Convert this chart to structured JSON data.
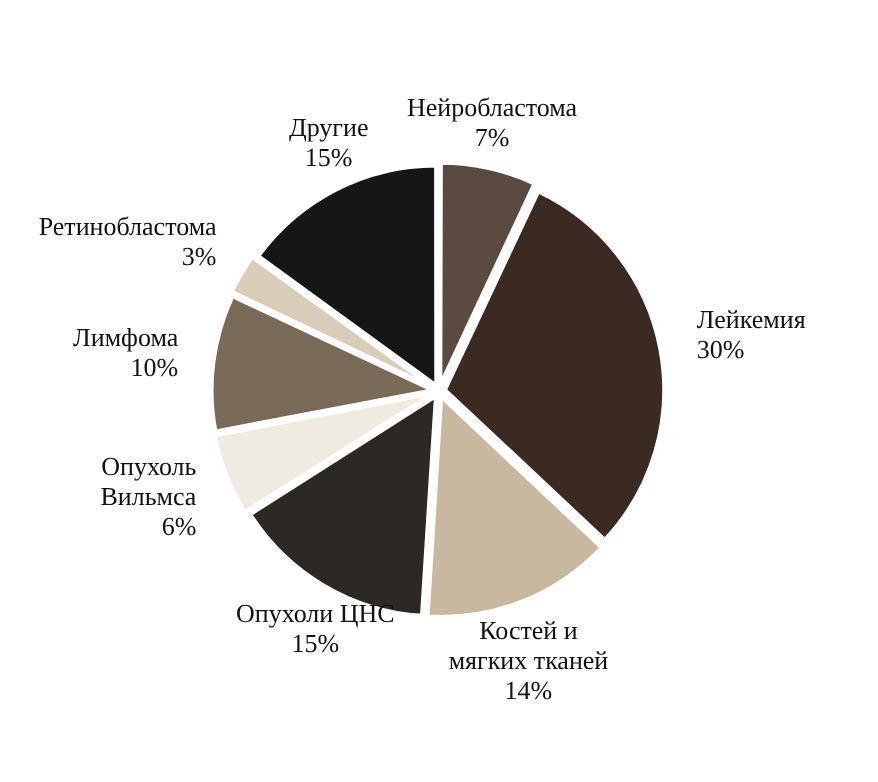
{
  "chart_data": {
    "type": "pie",
    "categories": [
      "Нейробластома",
      "Лейкемия",
      "Костей и мягких тканей",
      "Опухоли ЦНС",
      "Опухоль Вильмса",
      "Лимфома",
      "Ретинобластома",
      "Другие"
    ],
    "values": [
      7,
      30,
      14,
      15,
      6,
      10,
      3,
      15
    ],
    "value_labels": [
      "7%",
      "30%",
      "14%",
      "15%",
      "6%",
      "10%",
      "3%",
      "15%"
    ],
    "colors": [
      "#5a4a40",
      "#3a2a22",
      "#c8b8a0",
      "#2c2824",
      "#f0ebe0",
      "#7a6a58",
      "#d8cdb8",
      "#161616"
    ],
    "legend": false
  }
}
